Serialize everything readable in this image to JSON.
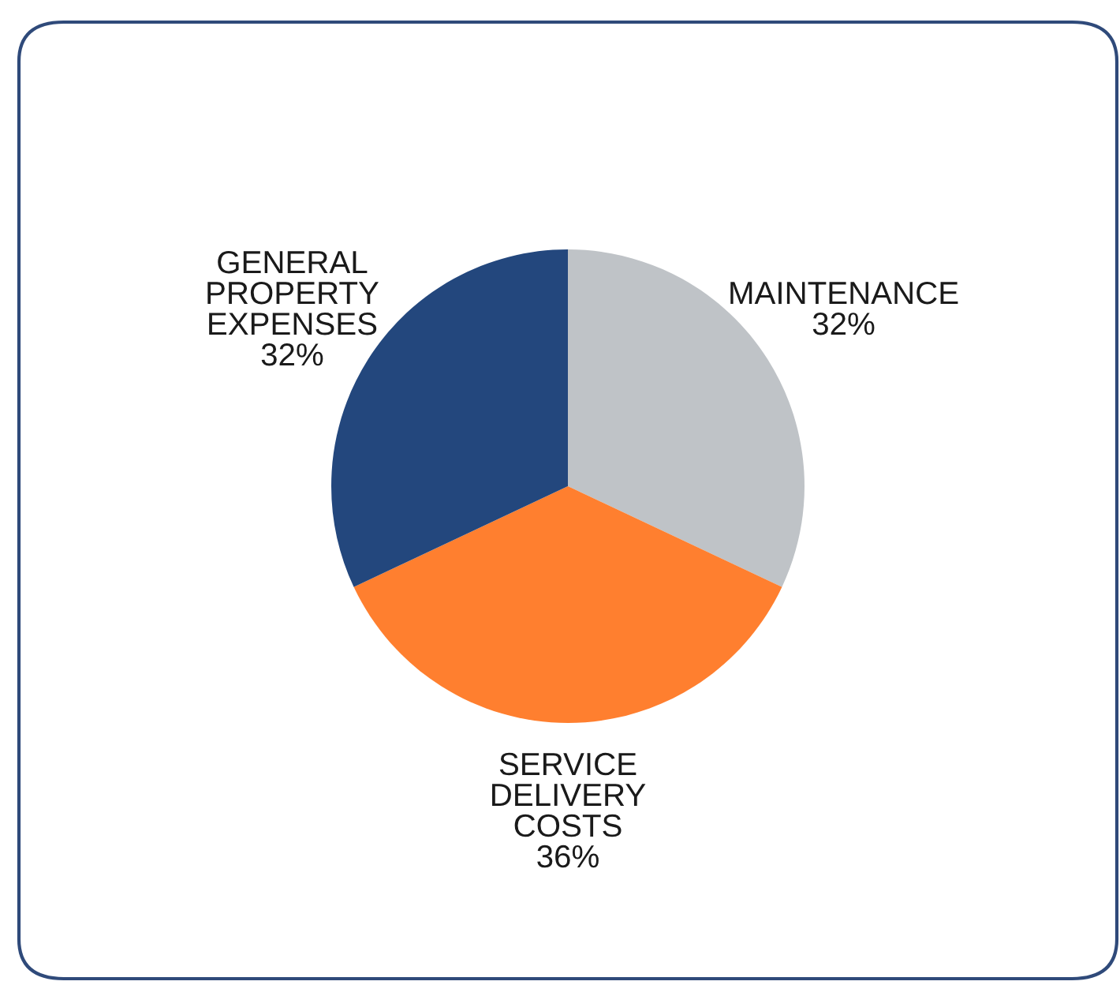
{
  "chart_data": {
    "type": "pie",
    "categories": [
      "MAINTENANCE",
      "SERVICE\nDELIVERY\nCOSTS",
      "GENERAL\nPROPERTY\nEXPENSES"
    ],
    "values": [
      32,
      36,
      32
    ],
    "colors": [
      "#bfc3c7",
      "#ff7f2f",
      "#23477d"
    ],
    "value_labels": [
      "32%",
      "36%",
      "32%"
    ]
  }
}
